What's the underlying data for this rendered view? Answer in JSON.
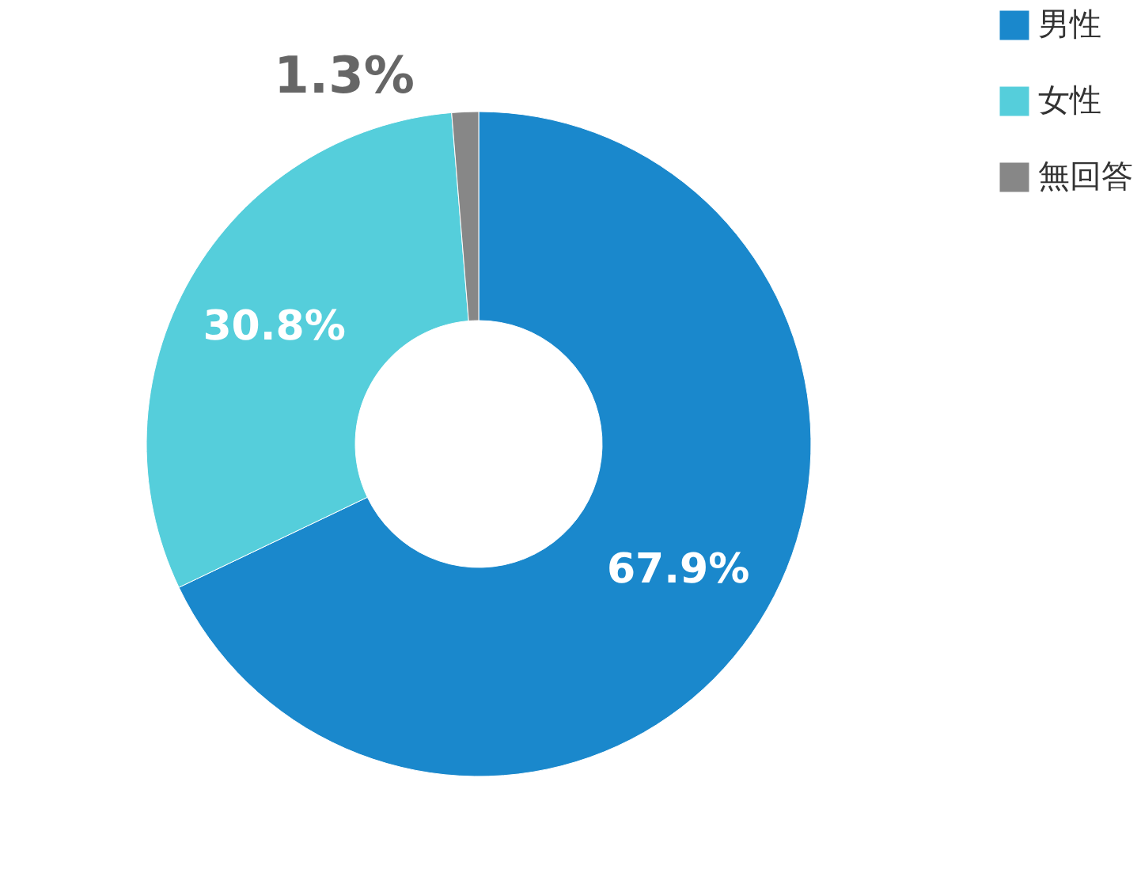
{
  "chart_data": {
    "type": "donut",
    "categories": [
      "男性",
      "女性",
      "無回答"
    ],
    "values": [
      67.9,
      30.8,
      1.3
    ],
    "colors": [
      "#1a88cc",
      "#55cedb",
      "#878787"
    ],
    "value_labels": [
      "67.9%",
      "30.8%",
      "1.3%"
    ],
    "legend": "right"
  }
}
